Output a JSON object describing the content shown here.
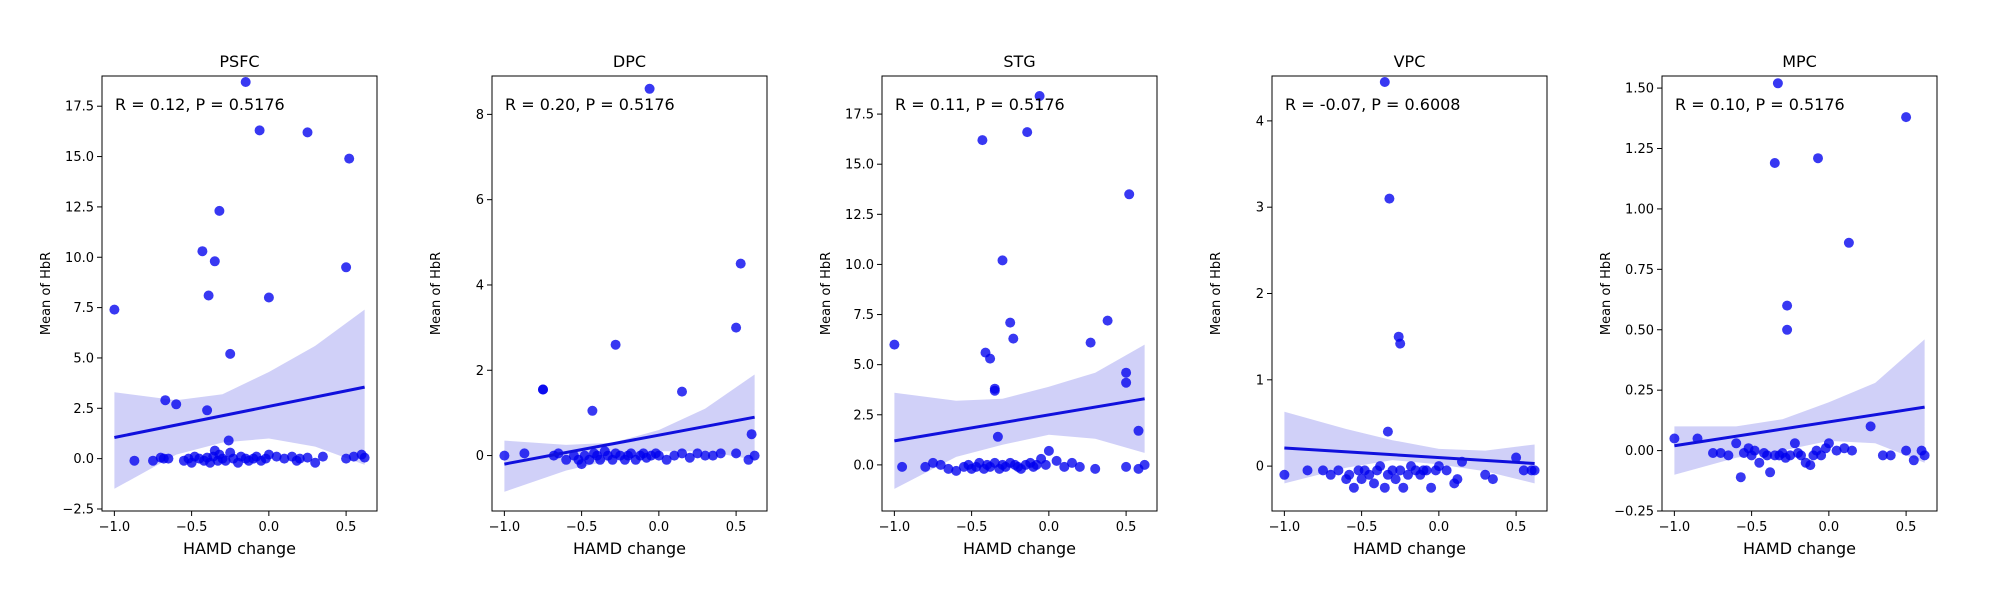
{
  "figure": {
    "background": "#ffffff"
  },
  "style": {
    "point_color": "#0000ee",
    "point_opacity": 0.78,
    "line_color": "#1010dd",
    "band_color": "#c8c8f7"
  },
  "chart_data": [
    {
      "type": "scatter",
      "title": "PSFC",
      "xlabel": "HAMD change",
      "ylabel": "Mean of HbR",
      "annotation": "R = 0.12, P = 0.5176",
      "xlim": [
        -1.08,
        0.7
      ],
      "ylim": [
        -2.6,
        19.0
      ],
      "xticks": [
        -1.0,
        -0.5,
        0.0,
        0.5
      ],
      "xtick_labels": [
        "−1.0",
        "−0.5",
        "0.0",
        "0.5"
      ],
      "yticks": [
        -2.5,
        0.0,
        2.5,
        5.0,
        7.5,
        10.0,
        12.5,
        15.0,
        17.5
      ],
      "ytick_labels": [
        "−2.5",
        "0.0",
        "2.5",
        "5.0",
        "7.5",
        "10.0",
        "12.5",
        "15.0",
        "17.5"
      ],
      "fit": {
        "x": [
          -1.0,
          0.62
        ],
        "y": [
          1.05,
          3.55
        ]
      },
      "ci_band": {
        "x": [
          -1.0,
          -0.6,
          -0.3,
          0.0,
          0.3,
          0.62
        ],
        "upper": [
          3.3,
          2.9,
          3.2,
          4.3,
          5.6,
          7.4
        ],
        "lower": [
          -1.5,
          0.2,
          0.8,
          1.0,
          0.6,
          -0.3
        ]
      },
      "points": {
        "x": [
          -1.0,
          -0.87,
          -0.75,
          -0.7,
          -0.68,
          -0.67,
          -0.65,
          -0.6,
          -0.55,
          -0.52,
          -0.5,
          -0.48,
          -0.45,
          -0.42,
          -0.4,
          -0.38,
          -0.36,
          -0.35,
          -0.33,
          -0.32,
          -0.3,
          -0.28,
          -0.25,
          -0.23,
          -0.2,
          -0.18,
          -0.15,
          -0.13,
          -0.1,
          -0.08,
          -0.05,
          -0.02,
          0.0,
          0.05,
          0.1,
          0.15,
          0.18,
          0.2,
          0.25,
          0.3,
          0.35,
          0.5,
          0.55,
          0.6,
          0.62,
          -0.43,
          -0.39,
          -0.35,
          -0.32,
          -0.25,
          -0.06,
          0.0,
          0.25,
          0.5,
          0.52,
          -0.15,
          -0.4,
          -0.26
        ],
        "y": [
          7.4,
          -0.1,
          -0.1,
          0.05,
          0.0,
          2.9,
          0.0,
          2.7,
          -0.1,
          0.0,
          -0.2,
          0.1,
          0.0,
          -0.1,
          0.05,
          -0.2,
          0.1,
          0.4,
          -0.1,
          0.2,
          0.0,
          -0.1,
          0.3,
          0.0,
          -0.2,
          0.1,
          0.0,
          -0.1,
          0.0,
          0.1,
          -0.1,
          0.0,
          0.2,
          0.1,
          0.0,
          0.1,
          -0.1,
          0.0,
          0.05,
          -0.2,
          0.1,
          0.0,
          0.1,
          0.2,
          0.05,
          10.3,
          8.1,
          9.8,
          12.3,
          5.2,
          16.3,
          8.0,
          16.2,
          9.5,
          14.9,
          18.7,
          2.4,
          0.9
        ]
      }
    },
    {
      "type": "scatter",
      "title": "DPC",
      "xlabel": "HAMD change",
      "ylabel": "Mean of HbR",
      "annotation": "R = 0.20, P = 0.5176",
      "xlim": [
        -1.08,
        0.7
      ],
      "ylim": [
        -1.3,
        8.9
      ],
      "xticks": [
        -1.0,
        -0.5,
        0.0,
        0.5
      ],
      "xtick_labels": [
        "−1.0",
        "−0.5",
        "0.0",
        "0.5"
      ],
      "yticks": [
        0,
        2,
        4,
        6,
        8
      ],
      "ytick_labels": [
        "0",
        "2",
        "4",
        "6",
        "8"
      ],
      "fit": {
        "x": [
          -1.0,
          0.62
        ],
        "y": [
          -0.2,
          0.9
        ]
      },
      "ci_band": {
        "x": [
          -1.0,
          -0.6,
          -0.3,
          0.0,
          0.3,
          0.62
        ],
        "upper": [
          0.35,
          0.25,
          0.3,
          0.6,
          1.1,
          1.9
        ],
        "lower": [
          -0.85,
          -0.35,
          -0.1,
          0.1,
          0.1,
          -0.1
        ]
      },
      "points": {
        "x": [
          -1.0,
          -0.87,
          -0.75,
          -0.68,
          -0.65,
          -0.6,
          -0.55,
          -0.52,
          -0.5,
          -0.48,
          -0.45,
          -0.42,
          -0.4,
          -0.38,
          -0.35,
          -0.33,
          -0.3,
          -0.28,
          -0.25,
          -0.22,
          -0.2,
          -0.18,
          -0.15,
          -0.12,
          -0.1,
          -0.08,
          -0.05,
          -0.02,
          0.0,
          0.05,
          0.1,
          0.15,
          0.2,
          0.25,
          0.3,
          0.35,
          0.4,
          0.5,
          0.58,
          0.62,
          -0.75,
          -0.43,
          -0.28,
          0.15,
          0.5,
          0.53,
          0.6,
          -0.06
        ],
        "y": [
          0.0,
          0.05,
          1.55,
          0.0,
          0.05,
          -0.1,
          0.0,
          -0.1,
          -0.2,
          0.0,
          -0.1,
          0.05,
          0.0,
          -0.1,
          0.1,
          0.0,
          -0.1,
          0.05,
          0.0,
          -0.1,
          0.0,
          0.05,
          -0.1,
          0.0,
          0.05,
          -0.05,
          0.0,
          0.05,
          0.0,
          -0.1,
          0.0,
          0.05,
          -0.05,
          0.05,
          0.0,
          0.0,
          0.05,
          0.05,
          -0.1,
          0.0,
          1.55,
          1.05,
          2.6,
          1.5,
          3.0,
          4.5,
          0.5,
          8.6
        ]
      }
    },
    {
      "type": "scatter",
      "title": "STG",
      "xlabel": "HAMD change",
      "ylabel": "Mean of HbR",
      "annotation": "R = 0.11, P = 0.5176",
      "xlim": [
        -1.08,
        0.7
      ],
      "ylim": [
        -2.3,
        19.4
      ],
      "xticks": [
        -1.0,
        -0.5,
        0.0,
        0.5
      ],
      "xtick_labels": [
        "−1.0",
        "−0.5",
        "0.0",
        "0.5"
      ],
      "yticks": [
        0.0,
        2.5,
        5.0,
        7.5,
        10.0,
        12.5,
        15.0,
        17.5
      ],
      "ytick_labels": [
        "0.0",
        "2.5",
        "5.0",
        "7.5",
        "10.0",
        "12.5",
        "15.0",
        "17.5"
      ],
      "fit": {
        "x": [
          -1.0,
          0.62
        ],
        "y": [
          1.2,
          3.3
        ]
      },
      "ci_band": {
        "x": [
          -1.0,
          -0.6,
          -0.3,
          0.0,
          0.3,
          0.62
        ],
        "upper": [
          3.6,
          3.2,
          3.3,
          3.9,
          4.6,
          6.0
        ],
        "lower": [
          -1.2,
          0.4,
          1.0,
          1.5,
          1.3,
          0.6
        ]
      },
      "points": {
        "x": [
          -1.0,
          -0.95,
          -0.8,
          -0.75,
          -0.7,
          -0.65,
          -0.6,
          -0.55,
          -0.52,
          -0.5,
          -0.47,
          -0.45,
          -0.42,
          -0.4,
          -0.38,
          -0.35,
          -0.32,
          -0.3,
          -0.28,
          -0.25,
          -0.22,
          -0.2,
          -0.18,
          -0.15,
          -0.12,
          -0.1,
          -0.08,
          -0.05,
          -0.02,
          0.0,
          0.05,
          0.1,
          0.15,
          0.2,
          0.3,
          0.5,
          0.58,
          0.62,
          -0.43,
          -0.41,
          -0.38,
          -0.35,
          -0.35,
          -0.3,
          -0.25,
          -0.23,
          -0.14,
          0.27,
          0.38,
          0.5,
          0.5,
          0.52,
          0.58,
          -0.33,
          -0.06
        ],
        "y": [
          6.0,
          -0.1,
          -0.1,
          0.1,
          0.0,
          -0.2,
          -0.3,
          -0.1,
          0.0,
          -0.2,
          -0.1,
          0.1,
          -0.2,
          0.0,
          -0.1,
          0.1,
          -0.2,
          0.0,
          -0.1,
          0.1,
          0.0,
          -0.1,
          -0.2,
          0.0,
          0.1,
          -0.1,
          0.0,
          0.3,
          0.0,
          0.7,
          0.2,
          -0.1,
          0.1,
          -0.1,
          -0.2,
          -0.1,
          -0.2,
          0.0,
          16.2,
          5.6,
          5.3,
          3.8,
          3.7,
          10.2,
          7.1,
          6.3,
          16.6,
          6.1,
          7.2,
          4.6,
          4.1,
          13.5,
          1.7,
          1.4,
          18.4
        ]
      }
    },
    {
      "type": "scatter",
      "title": "VPC",
      "xlabel": "HAMD change",
      "ylabel": "Mean of HbR",
      "annotation": "R = -0.07, P = 0.6008",
      "xlim": [
        -1.08,
        0.7
      ],
      "ylim": [
        -0.52,
        4.52
      ],
      "xticks": [
        -1.0,
        -0.5,
        0.0,
        0.5
      ],
      "xtick_labels": [
        "−1.0",
        "−0.5",
        "0.0",
        "0.5"
      ],
      "yticks": [
        0,
        1,
        2,
        3,
        4
      ],
      "ytick_labels": [
        "0",
        "1",
        "2",
        "3",
        "4"
      ],
      "fit": {
        "x": [
          -1.0,
          0.62
        ],
        "y": [
          0.21,
          0.03
        ]
      },
      "ci_band": {
        "x": [
          -1.0,
          -0.6,
          -0.3,
          0.0,
          0.3,
          0.62
        ],
        "upper": [
          0.63,
          0.43,
          0.3,
          0.2,
          0.18,
          0.25
        ],
        "lower": [
          -0.2,
          -0.02,
          0.07,
          0.02,
          -0.06,
          -0.2
        ]
      },
      "points": {
        "x": [
          -1.0,
          -0.85,
          -0.75,
          -0.7,
          -0.65,
          -0.6,
          -0.58,
          -0.55,
          -0.52,
          -0.5,
          -0.48,
          -0.45,
          -0.42,
          -0.4,
          -0.38,
          -0.35,
          -0.33,
          -0.3,
          -0.28,
          -0.25,
          -0.23,
          -0.2,
          -0.18,
          -0.15,
          -0.12,
          -0.1,
          -0.08,
          -0.05,
          -0.02,
          0.0,
          0.05,
          0.1,
          0.12,
          0.15,
          0.3,
          0.35,
          0.5,
          0.55,
          0.6,
          0.62,
          -0.33,
          -0.26,
          -0.25,
          -0.32,
          -0.35
        ],
        "y": [
          -0.1,
          -0.05,
          -0.05,
          -0.1,
          -0.05,
          -0.15,
          -0.1,
          -0.25,
          -0.05,
          -0.15,
          -0.05,
          -0.1,
          -0.2,
          -0.05,
          0.0,
          -0.25,
          -0.1,
          -0.05,
          -0.15,
          -0.05,
          -0.25,
          -0.1,
          0.0,
          -0.05,
          -0.1,
          -0.05,
          -0.05,
          -0.25,
          -0.05,
          0.0,
          -0.05,
          -0.2,
          -0.15,
          0.05,
          -0.1,
          -0.15,
          0.1,
          -0.05,
          -0.05,
          -0.05,
          0.4,
          1.5,
          1.42,
          3.1,
          4.45
        ]
      }
    },
    {
      "type": "scatter",
      "title": "MPC",
      "xlabel": "HAMD change",
      "ylabel": "Mean of HbR",
      "annotation": "R = 0.10, P = 0.5176",
      "xlim": [
        -1.08,
        0.7
      ],
      "ylim": [
        -0.25,
        1.55
      ],
      "xticks": [
        -1.0,
        -0.5,
        0.0,
        0.5
      ],
      "xtick_labels": [
        "−1.0",
        "−0.5",
        "0.0",
        "0.5"
      ],
      "yticks": [
        -0.25,
        0.0,
        0.25,
        0.5,
        0.75,
        1.0,
        1.25,
        1.5
      ],
      "ytick_labels": [
        "−0.25",
        "0.00",
        "0.25",
        "0.50",
        "0.75",
        "1.00",
        "1.25",
        "1.50"
      ],
      "fit": {
        "x": [
          -1.0,
          0.62
        ],
        "y": [
          0.02,
          0.18
        ]
      },
      "ci_band": {
        "x": [
          -1.0,
          -0.6,
          -0.3,
          0.0,
          0.3,
          0.62
        ],
        "upper": [
          0.1,
          0.1,
          0.13,
          0.2,
          0.28,
          0.46
        ],
        "lower": [
          -0.1,
          -0.03,
          0.0,
          0.04,
          0.03,
          -0.05
        ]
      },
      "points": {
        "x": [
          -1.0,
          -0.85,
          -0.75,
          -0.7,
          -0.65,
          -0.6,
          -0.57,
          -0.55,
          -0.52,
          -0.5,
          -0.48,
          -0.45,
          -0.42,
          -0.4,
          -0.38,
          -0.35,
          -0.32,
          -0.3,
          -0.28,
          -0.25,
          -0.22,
          -0.2,
          -0.18,
          -0.15,
          -0.12,
          -0.1,
          -0.08,
          -0.05,
          -0.02,
          0.0,
          0.05,
          0.1,
          0.15,
          0.27,
          0.35,
          0.4,
          0.5,
          0.55,
          0.6,
          0.62,
          -0.35,
          -0.07,
          -0.27,
          -0.27,
          0.13,
          0.5,
          -0.33
        ],
        "y": [
          0.05,
          0.05,
          -0.01,
          -0.01,
          -0.02,
          0.03,
          -0.11,
          -0.01,
          0.01,
          -0.02,
          0.0,
          -0.05,
          -0.01,
          -0.02,
          -0.09,
          -0.02,
          -0.02,
          -0.01,
          -0.03,
          -0.02,
          0.03,
          -0.01,
          -0.02,
          -0.05,
          -0.06,
          -0.02,
          0.0,
          -0.02,
          0.01,
          0.03,
          0.0,
          0.01,
          0.0,
          0.1,
          -0.02,
          -0.02,
          0.0,
          -0.04,
          0.0,
          -0.02,
          1.19,
          1.21,
          0.6,
          0.5,
          0.86,
          1.38,
          1.52
        ]
      }
    }
  ]
}
